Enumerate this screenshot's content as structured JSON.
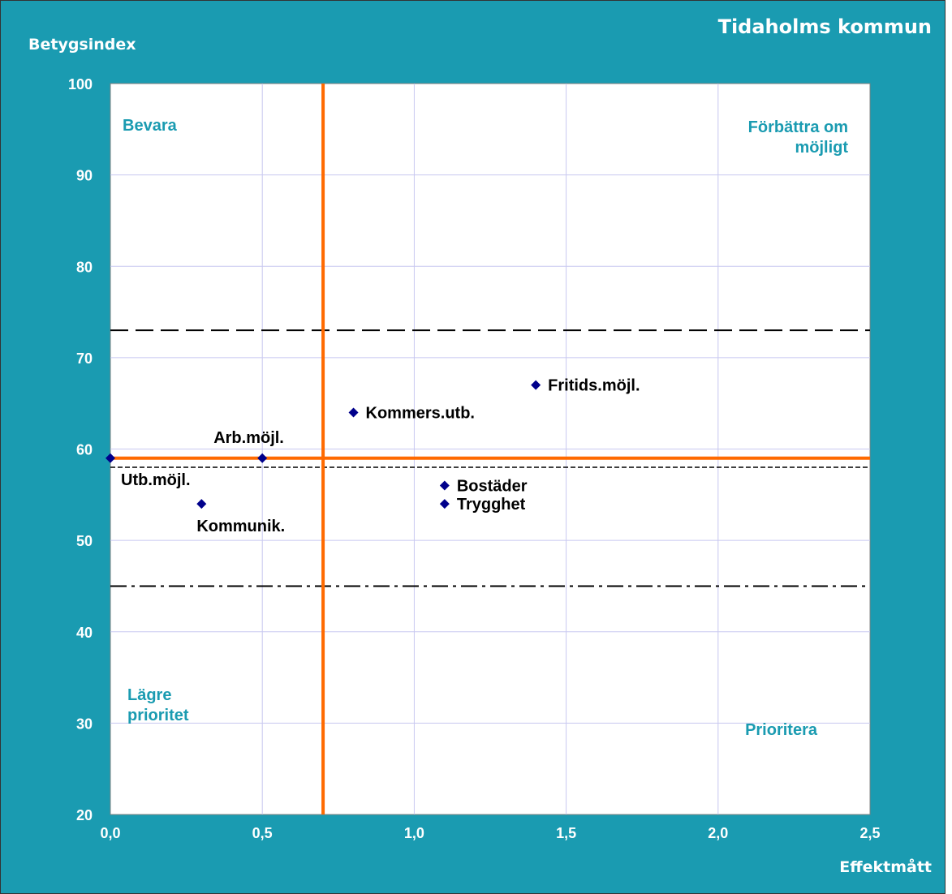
{
  "colors": {
    "frame_bg": "#1A9BB1",
    "plot_bg": "#FFFFFF",
    "grid": "#C8C8F0",
    "threshold": "#FF6A00",
    "marker": "#00008B",
    "quadrant_text": "#1A9BB1",
    "reference": "#000000"
  },
  "chart_data": {
    "type": "scatter",
    "title": "Tidaholms kommun",
    "xlabel": "Effektmått",
    "ylabel": "Betygsindex",
    "xlim": [
      0,
      2.5
    ],
    "ylim": [
      20,
      100
    ],
    "x_ticks": [
      0,
      0.5,
      1.0,
      1.5,
      2.0,
      2.5
    ],
    "x_tick_labels": [
      "0,0",
      "0,5",
      "1,0",
      "1,5",
      "2,0",
      "2,5"
    ],
    "y_ticks": [
      20,
      30,
      40,
      50,
      60,
      70,
      80,
      90,
      100
    ],
    "y_tick_labels": [
      "20",
      "30",
      "40",
      "50",
      "60",
      "70",
      "80",
      "90",
      "100"
    ],
    "grid": true,
    "points": [
      {
        "label": "Utb.möjl.",
        "x": 0.0,
        "y": 59,
        "label_pos": "below-right"
      },
      {
        "label": "Arb.möjl.",
        "x": 0.5,
        "y": 59,
        "label_pos": "above-left"
      },
      {
        "label": "Kommunik.",
        "x": 0.3,
        "y": 54,
        "label_pos": "below"
      },
      {
        "label": "Kommers.utb.",
        "x": 0.8,
        "y": 64,
        "label_pos": "right"
      },
      {
        "label": "Fritids.möjl.",
        "x": 1.4,
        "y": 67,
        "label_pos": "right"
      },
      {
        "label": "Bostäder",
        "x": 1.1,
        "y": 56,
        "label_pos": "right"
      },
      {
        "label": "Trygghet",
        "x": 1.1,
        "y": 54,
        "label_pos": "right"
      }
    ],
    "thresholds": {
      "x": 0.7,
      "y": 59
    },
    "reference_lines": [
      {
        "y": 73,
        "style": "long-dash"
      },
      {
        "y": 58,
        "style": "short-dash"
      },
      {
        "y": 45,
        "style": "dash-dot"
      }
    ],
    "quadrant_labels": {
      "top_left": [
        "Bevara"
      ],
      "top_right": [
        "Förbättra om",
        "möjligt"
      ],
      "bottom_left": [
        "Lägre",
        "prioritet"
      ],
      "bottom_right": [
        "Prioritera"
      ]
    }
  }
}
